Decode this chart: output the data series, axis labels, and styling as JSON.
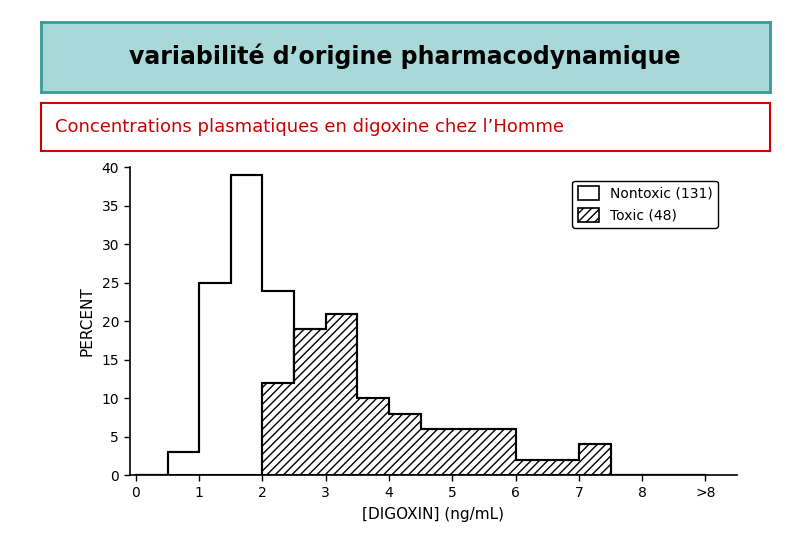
{
  "title": "variabilité d’origine pharmacodynamique",
  "subtitle": "Concentrations plasmatiques en digoxine chez l’Homme",
  "title_bg": "#a8d8d8",
  "title_border": "#3a9a9a",
  "subtitle_color": "#cc0000",
  "subtitle_border": "#cc0000",
  "xlabel": "[DIGOXIN] (ng/mL)",
  "ylabel": "PERCENT",
  "ylim": [
    0,
    40
  ],
  "yticks": [
    0,
    5,
    10,
    15,
    20,
    25,
    30,
    35,
    40
  ],
  "xtick_labels": [
    "0",
    "1",
    "2",
    "3",
    "4",
    "5",
    "6",
    "7",
    "8",
    ">8"
  ],
  "xtick_pos": [
    0,
    1,
    2,
    3,
    4,
    5,
    6,
    7,
    8,
    9
  ],
  "nontoxic_label": "Nontoxic (131)",
  "toxic_label": "Toxic (48)",
  "nontoxic_edges": [
    0,
    0.5,
    1.0,
    1.5,
    2.0,
    2.5,
    3.0
  ],
  "nontoxic_vals": [
    0,
    3,
    25,
    39,
    24,
    0,
    0
  ],
  "toxic_edges": [
    2.0,
    2.5,
    3.0,
    3.5,
    4.0,
    4.5,
    5.0,
    6.0,
    7.0,
    7.5,
    8.0,
    9.0
  ],
  "toxic_vals": [
    12,
    19,
    21,
    10,
    8,
    6,
    6,
    2,
    4,
    0,
    0,
    0
  ],
  "background_color": "#ffffff"
}
